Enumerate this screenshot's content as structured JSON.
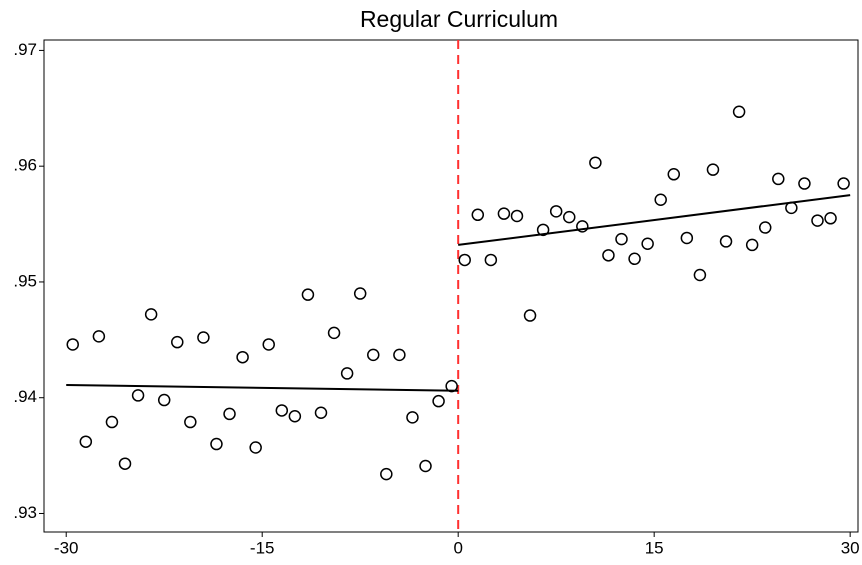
{
  "chart_data": {
    "type": "scatter",
    "title": "Regular Curriculum",
    "x": [
      -29.5,
      -28.5,
      -27.5,
      -26.5,
      -25.5,
      -24.5,
      -23.5,
      -22.5,
      -21.5,
      -20.5,
      -19.5,
      -18.5,
      -17.5,
      -16.5,
      -15.5,
      -14.5,
      -13.5,
      -12.5,
      -11.5,
      -10.5,
      -9.5,
      -8.5,
      -7.5,
      -6.5,
      -5.5,
      -4.5,
      -3.5,
      -2.5,
      -1.5,
      -0.5,
      0.5,
      1.5,
      2.5,
      3.5,
      4.5,
      5.5,
      6.5,
      7.5,
      8.5,
      9.5,
      10.5,
      11.5,
      12.5,
      13.5,
      14.5,
      15.5,
      16.5,
      17.5,
      18.5,
      19.5,
      20.5,
      21.5,
      22.5,
      23.5,
      24.5,
      25.5,
      26.5,
      27.5,
      28.5,
      29.5
    ],
    "values": [
      0.9446,
      0.9362,
      0.9453,
      0.9379,
      0.9343,
      0.9402,
      0.9472,
      0.9398,
      0.9448,
      0.9379,
      0.9452,
      0.936,
      0.9386,
      0.9435,
      0.9357,
      0.9446,
      0.9389,
      0.9384,
      0.9489,
      0.9387,
      0.9456,
      0.9421,
      0.949,
      0.9437,
      0.9334,
      0.9437,
      0.9383,
      0.9341,
      0.9397,
      0.941,
      0.9519,
      0.9558,
      0.9519,
      0.9559,
      0.9557,
      0.9471,
      0.9545,
      0.9561,
      0.9556,
      0.9548,
      0.9603,
      0.9523,
      0.9537,
      0.952,
      0.9533,
      0.9571,
      0.9593,
      0.9538,
      0.9506,
      0.9597,
      0.9535,
      0.9647,
      0.9532,
      0.9547,
      0.9589,
      0.9564,
      0.9585,
      0.9553,
      0.9555,
      0.9585
    ],
    "marker_color": "#000000",
    "fit_lines": [
      {
        "x": [
          -30,
          0
        ],
        "values": [
          0.9411,
          0.9406
        ]
      },
      {
        "x": [
          0,
          30
        ],
        "values": [
          0.9532,
          0.9575
        ]
      }
    ],
    "fit_color": "#000000",
    "cutoff": 0,
    "cutoff_color": "#ff3030",
    "xlim": [
      -31.7,
      30.6
    ],
    "ylim": [
      0.9284,
      0.9709
    ],
    "xticks": [
      -30,
      -15,
      0,
      15,
      30
    ],
    "yticks": [
      {
        "value": 0.93,
        "label": ".93"
      },
      {
        "value": 0.94,
        "label": ".94"
      },
      {
        "value": 0.95,
        "label": ".95"
      },
      {
        "value": 0.96,
        "label": ".96"
      },
      {
        "value": 0.97,
        "label": ".97"
      }
    ]
  }
}
